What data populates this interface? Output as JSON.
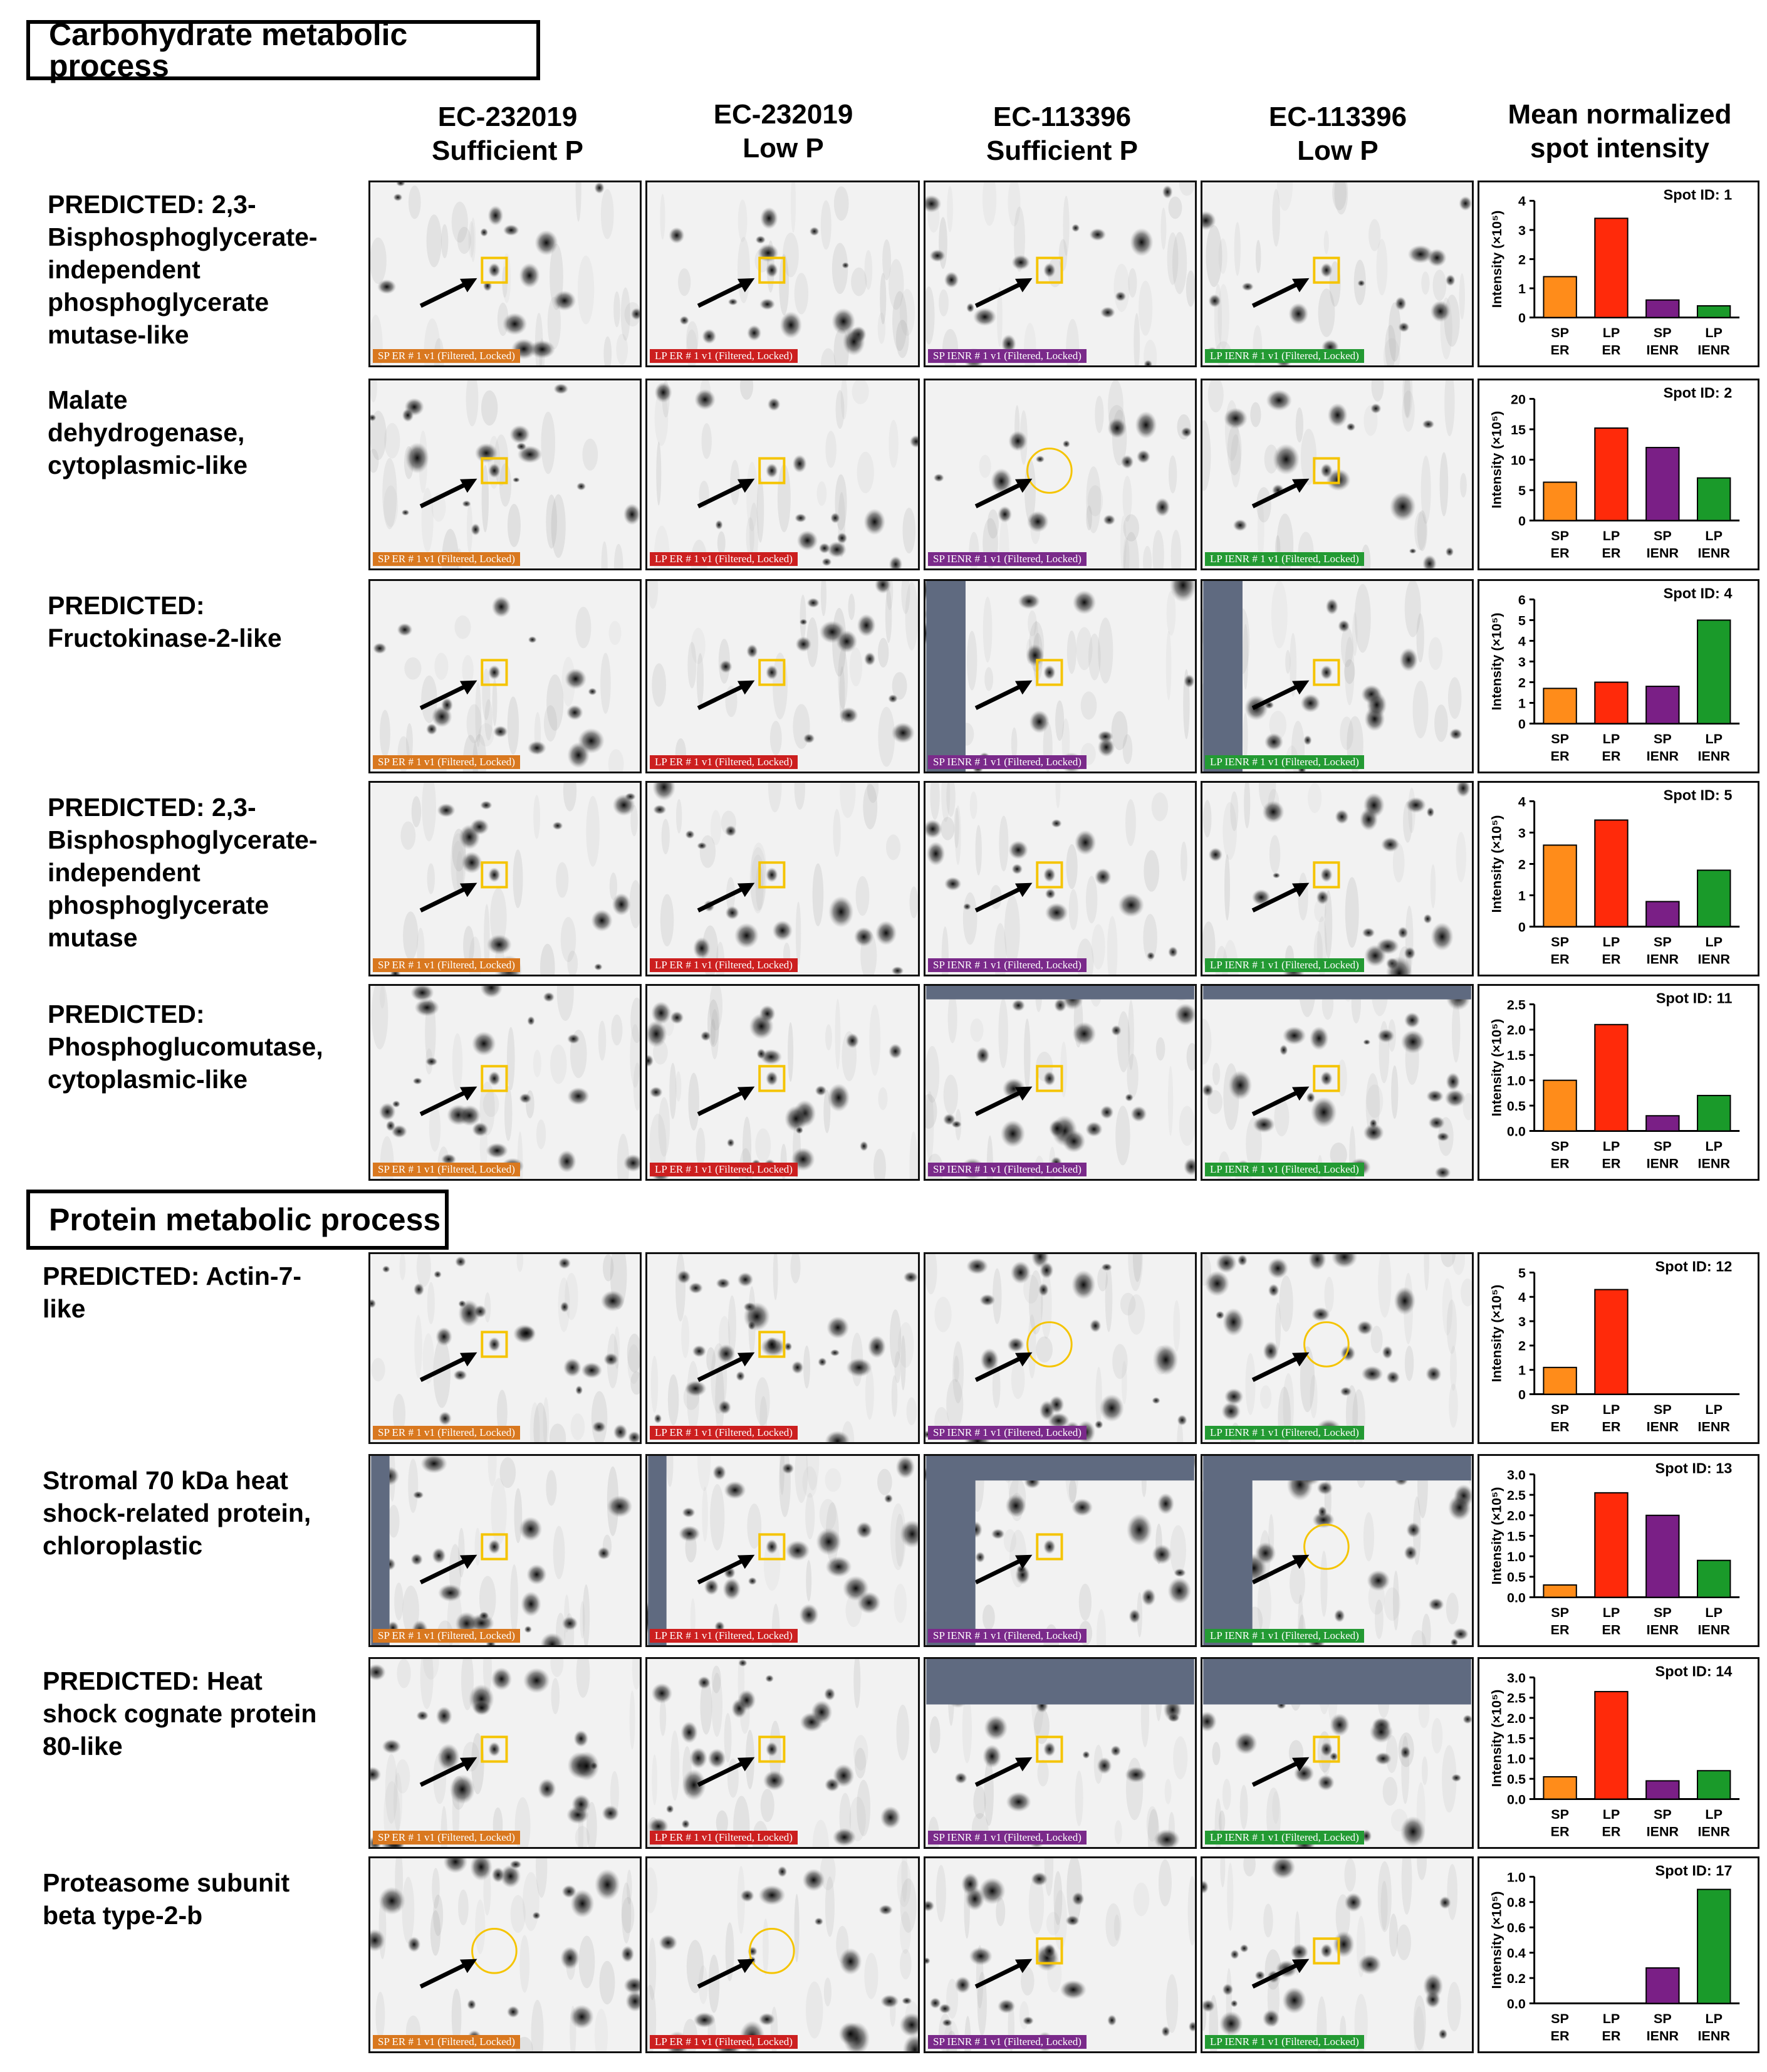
{
  "sections": [
    {
      "title": "Carbohydrate metabolic process"
    },
    {
      "title": "Protein metabolic process"
    }
  ],
  "columns": [
    {
      "label": "EC-232019\nSufficient P"
    },
    {
      "label": "EC-232019\nLow P"
    },
    {
      "label": "EC-113396\nSufficient P"
    },
    {
      "label": "EC-113396\nLow P"
    },
    {
      "label": "Mean normalized\nspot intensity"
    }
  ],
  "gel_tags": [
    "SP ER # 1 v1 (Filtered, Locked)",
    "LP ER # 1 v1 (Filtered, Locked)",
    "SP IENR # 1 v1 (Filtered, Locked)",
    "LP IENR # 1 v1 (Filtered, Locked)"
  ],
  "colors": {
    "sp_er": "#ff8c1a",
    "lp_er": "#ff2a0a",
    "sp_ienr": "#7a1f86",
    "lp_ienr": "#1a9a2a",
    "tag_sp_er": "#d9781f",
    "tag_lp_er": "#cc1f1f",
    "tag_sp_ienr": "#7a2a8a",
    "tag_lp_ienr": "#239a33",
    "highlight": "#f5c400",
    "mask": "#5f6a80"
  },
  "proteins": [
    {
      "label": "PREDICTED: 2,3-\nBisphosphoglycerate-\nindependent\nphosphoglycerate\nmutase-like"
    },
    {
      "label": "Malate\ndehydrogenase,\ncytoplasmic-like"
    },
    {
      "label": "PREDICTED:\nFructokinase-2-like"
    },
    {
      "label": "PREDICTED: 2,3-\nBisphosphoglycerate-\nindependent\nphosphoglycerate\nmutase"
    },
    {
      "label": "PREDICTED:\nPhosphoglucomutase,\ncytoplasmic-like"
    },
    {
      "label": "PREDICTED: Actin-7-\nlike"
    },
    {
      "label": "Stromal 70 kDa heat\nshock-related protein,\nchloroplastic"
    },
    {
      "label": "PREDICTED: Heat\nshock cognate protein\n80-like"
    },
    {
      "label": "Proteasome subunit\nbeta type-2-b"
    }
  ],
  "chart_data": [
    {
      "type": "bar",
      "title": "Spot ID: 1",
      "ylabel": "Intensity (×10⁵)",
      "categories": [
        "SP ER",
        "LP ER",
        "SP IENR",
        "LP IENR"
      ],
      "values": [
        1.4,
        3.4,
        0.6,
        0.4
      ],
      "ylim": [
        0,
        4
      ],
      "yticks": [
        "0",
        "1",
        "2",
        "3",
        "4"
      ]
    },
    {
      "type": "bar",
      "title": "Spot ID: 2",
      "ylabel": "Intensity (×10⁵)",
      "categories": [
        "SP ER",
        "LP ER",
        "SP IENR",
        "LP IENR"
      ],
      "values": [
        6.3,
        15.2,
        12.0,
        7.0
      ],
      "ylim": [
        0,
        20
      ],
      "yticks": [
        "0",
        "5",
        "10",
        "15",
        "20"
      ]
    },
    {
      "type": "bar",
      "title": "Spot ID: 4",
      "ylabel": "Intensity (×10⁵)",
      "categories": [
        "SP ER",
        "LP ER",
        "SP IENR",
        "LP IENR"
      ],
      "values": [
        1.7,
        2.0,
        1.8,
        5.0
      ],
      "ylim": [
        0,
        6
      ],
      "yticks": [
        "0",
        "1",
        "2",
        "3",
        "4",
        "5",
        "6"
      ]
    },
    {
      "type": "bar",
      "title": "Spot ID: 5",
      "ylabel": "Intensity (×10⁵)",
      "categories": [
        "SP ER",
        "LP ER",
        "SP IENR",
        "LP IENR"
      ],
      "values": [
        2.6,
        3.4,
        0.8,
        1.8
      ],
      "ylim": [
        0,
        4
      ],
      "yticks": [
        "0",
        "1",
        "2",
        "3",
        "4"
      ]
    },
    {
      "type": "bar",
      "title": "Spot ID: 11",
      "ylabel": "Intensity (×10⁵)",
      "categories": [
        "SP ER",
        "LP ER",
        "SP IENR",
        "LP IENR"
      ],
      "values": [
        1.0,
        2.1,
        0.3,
        0.7
      ],
      "ylim": [
        0,
        2.5
      ],
      "yticks": [
        "0.0",
        "0.5",
        "1.0",
        "1.5",
        "2.0",
        "2.5"
      ]
    },
    {
      "type": "bar",
      "title": "Spot ID: 12",
      "ylabel": "Intensity (×10⁵)",
      "categories": [
        "SP ER",
        "LP ER",
        "SP IENR",
        "LP IENR"
      ],
      "values": [
        1.1,
        4.3,
        0,
        0
      ],
      "ylim": [
        0,
        5
      ],
      "yticks": [
        "0",
        "1",
        "2",
        "3",
        "4",
        "5"
      ]
    },
    {
      "type": "bar",
      "title": "Spot ID: 13",
      "ylabel": "Intensity (×10⁵)",
      "categories": [
        "SP ER",
        "LP ER",
        "SP IENR",
        "LP IENR"
      ],
      "values": [
        0.3,
        2.55,
        2.0,
        0.9
      ],
      "ylim": [
        0,
        3.0
      ],
      "yticks": [
        "0.0",
        "0.5",
        "1.0",
        "1.5",
        "2.0",
        "2.5",
        "3.0"
      ]
    },
    {
      "type": "bar",
      "title": "Spot ID: 14",
      "ylabel": "Intensity (×10⁵)",
      "categories": [
        "SP ER",
        "LP ER",
        "SP IENR",
        "LP IENR"
      ],
      "values": [
        0.55,
        2.65,
        0.45,
        0.7
      ],
      "ylim": [
        0,
        3.0
      ],
      "yticks": [
        "0.0",
        "0.5",
        "1.0",
        "1.5",
        "2.0",
        "2.5",
        "3.0"
      ]
    },
    {
      "type": "bar",
      "title": "Spot ID: 17",
      "ylabel": "Intensity (×10⁵)",
      "categories": [
        "SP ER",
        "LP ER",
        "SP IENR",
        "LP IENR"
      ],
      "values": [
        0,
        0,
        0.28,
        0.9
      ],
      "ylim": [
        0,
        1.0
      ],
      "yticks": [
        "0.0",
        "0.2",
        "0.4",
        "0.6",
        "0.8",
        "1.0"
      ]
    }
  ]
}
